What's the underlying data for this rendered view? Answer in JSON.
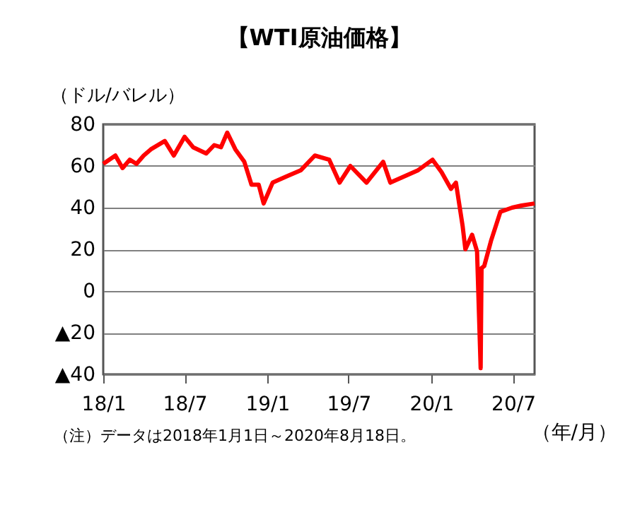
{
  "chart_data": {
    "type": "line",
    "title": "【WTI原油価格】",
    "ylabel": "（ドル/バレル）",
    "xlabel": "（年/月）",
    "x": [
      "2018-01-01",
      "2018-01-28",
      "2018-02-13",
      "2018-03-01",
      "2018-03-16",
      "2018-04-01",
      "2018-04-17",
      "2018-05-18",
      "2018-06-07",
      "2018-07-01",
      "2018-07-20",
      "2018-08-18",
      "2018-09-05",
      "2018-09-20",
      "2018-10-04",
      "2018-10-22",
      "2018-11-11",
      "2018-11-27",
      "2018-12-13",
      "2018-12-24",
      "2019-01-13",
      "2019-02-13",
      "2019-03-17",
      "2019-04-17",
      "2019-05-19",
      "2019-06-11",
      "2019-07-05",
      "2019-08-10",
      "2019-09-16",
      "2019-10-02",
      "2019-12-03",
      "2020-01-04",
      "2020-01-24",
      "2020-02-14",
      "2020-02-25",
      "2020-03-06",
      "2020-03-11",
      "2020-03-17",
      "2020-04-01",
      "2020-04-12",
      "2020-04-20",
      "2020-04-22",
      "2020-04-28",
      "2020-05-13",
      "2020-06-03",
      "2020-06-29",
      "2020-07-20",
      "2020-08-18"
    ],
    "series": [
      {
        "color": "#ff0000",
        "values": [
          61,
          65,
          59,
          63,
          61,
          65,
          68,
          72,
          65,
          74,
          69,
          66,
          70,
          69,
          76,
          68,
          62,
          51,
          51,
          42,
          52,
          55,
          58,
          65,
          63,
          52,
          60,
          52,
          62,
          52,
          58,
          63,
          57,
          49,
          52,
          38,
          31,
          20,
          27,
          19,
          -37,
          11,
          12,
          24,
          38,
          40,
          41,
          42
        ]
      }
    ],
    "xlim": [
      "2018-01-01",
      "2020-08-18"
    ],
    "xticks": [
      {
        "value": "2018-01-01",
        "label": "18/1"
      },
      {
        "value": "2018-07-01",
        "label": "18/7"
      },
      {
        "value": "2019-01-01",
        "label": "19/1"
      },
      {
        "value": "2019-07-01",
        "label": "19/7"
      },
      {
        "value": "2020-01-01",
        "label": "20/1"
      },
      {
        "value": "2020-07-01",
        "label": "20/7"
      }
    ],
    "ylim": [
      -40,
      80
    ],
    "yticks": [
      80,
      60,
      40,
      20,
      0,
      {
        "value": -20,
        "label": "▲20"
      },
      {
        "value": -40,
        "label": "▲40"
      }
    ],
    "grid": "y",
    "legend": false,
    "annotations": [
      "（注）データは2018年1月1日～2020年8月18日。"
    ]
  }
}
